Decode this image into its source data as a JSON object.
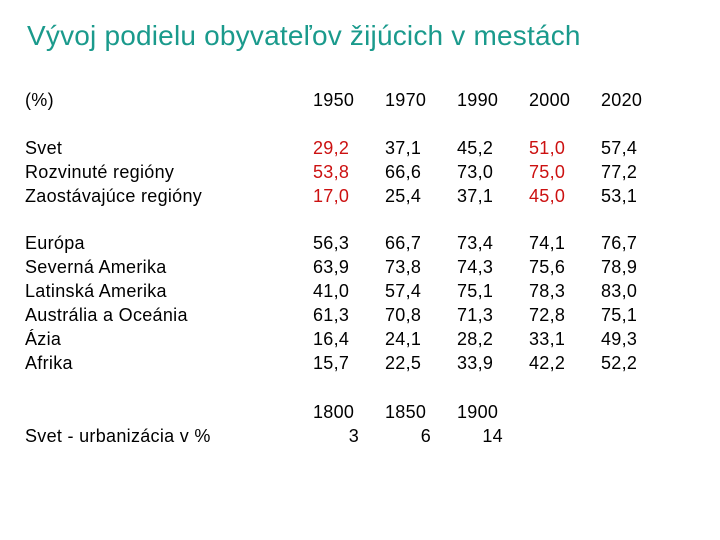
{
  "title": "Vývoj podielu obyvateľov žijúcich v mestách",
  "colors": {
    "title": "#1a9a8c",
    "highlight": "#cc1111",
    "text": "#000000"
  },
  "header": {
    "unit": "(%)",
    "years": [
      "1950",
      "1970",
      "1990",
      "2000",
      "2020"
    ]
  },
  "group1": {
    "labels": [
      "Svet",
      "Rozvinuté regióny",
      "Zaostávajúce regióny"
    ],
    "columns": [
      [
        "29,2",
        "53,8",
        "17,0"
      ],
      [
        "37,1",
        "66,6",
        "25,4"
      ],
      [
        "45,2",
        "73,0",
        "37,1"
      ],
      [
        "51,0",
        "75,0",
        "45,0"
      ],
      [
        "57,4",
        "77,2",
        "53,1"
      ]
    ]
  },
  "group2": {
    "labels": [
      "Európa",
      "Severná Amerika",
      "Latinská Amerika",
      "Austrália a Oceánia",
      "Ázia",
      "Afrika"
    ],
    "columns": [
      [
        "56,3",
        "63,9",
        "41,0",
        "61,3",
        "16,4",
        "15,7"
      ],
      [
        "66,7",
        "73,8",
        "57,4",
        "70,8",
        "24,1",
        "22,5"
      ],
      [
        "73,4",
        "74,3",
        "75,1",
        "71,3",
        "28,2",
        "33,9"
      ],
      [
        "74,1",
        "75,6",
        "78,3",
        "72,8",
        "33,1",
        "42,2"
      ],
      [
        "76,7",
        "78,9",
        "83,0",
        "75,1",
        "49,3",
        "52,2"
      ]
    ]
  },
  "historical": {
    "label": "Svet - urbanizácia v %",
    "entries": [
      {
        "year": "1800",
        "value": "3"
      },
      {
        "year": "1850",
        "value": "6"
      },
      {
        "year": "1900",
        "value": "14"
      }
    ]
  }
}
